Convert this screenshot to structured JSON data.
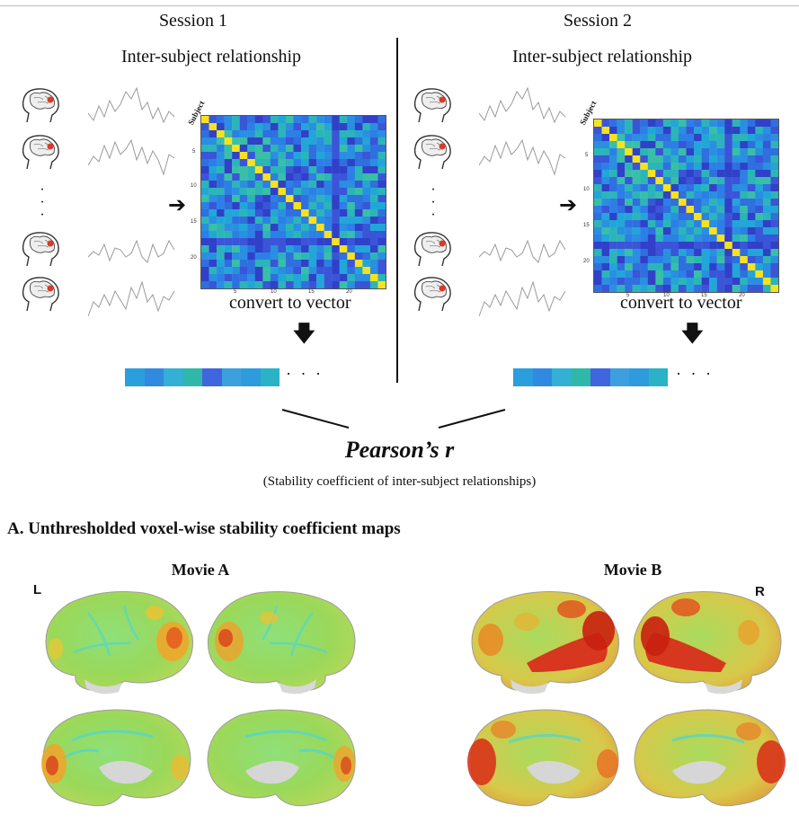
{
  "session1": {
    "title": "Session 1",
    "subtitle": "Inter-subject relationship",
    "convert": "convert to vector",
    "dots": "· · ·"
  },
  "session2": {
    "title": "Session 2",
    "subtitle": "Inter-subject relationship",
    "convert": "convert to vector",
    "dots": "· · ·"
  },
  "matrix": {
    "axis_label": "Subject",
    "x_ticks": [
      "5",
      "10",
      "15",
      "20"
    ],
    "y_ticks": [
      "5",
      "10",
      "15",
      "20"
    ],
    "colors": {
      "diag": "#f7e21e",
      "low": "#3140c8",
      "high": "#35b9a8"
    }
  },
  "vector_colors": [
    "#2b9ede",
    "#2f8ae0",
    "#33b0d4",
    "#2fb8a9",
    "#3f66df",
    "#3ba0dd",
    "#2d9bdc",
    "#2ab2c6"
  ],
  "pearson": {
    "label": "Pearson’s r",
    "note": "(Stability coefficient of inter-subject relationships)"
  },
  "section_a": {
    "title": "A. Unthresholded voxel-wise stability coefficient maps"
  },
  "movies": {
    "a": "Movie A",
    "b": "Movie B"
  },
  "hemispheres": {
    "left": "L",
    "right": "R"
  }
}
